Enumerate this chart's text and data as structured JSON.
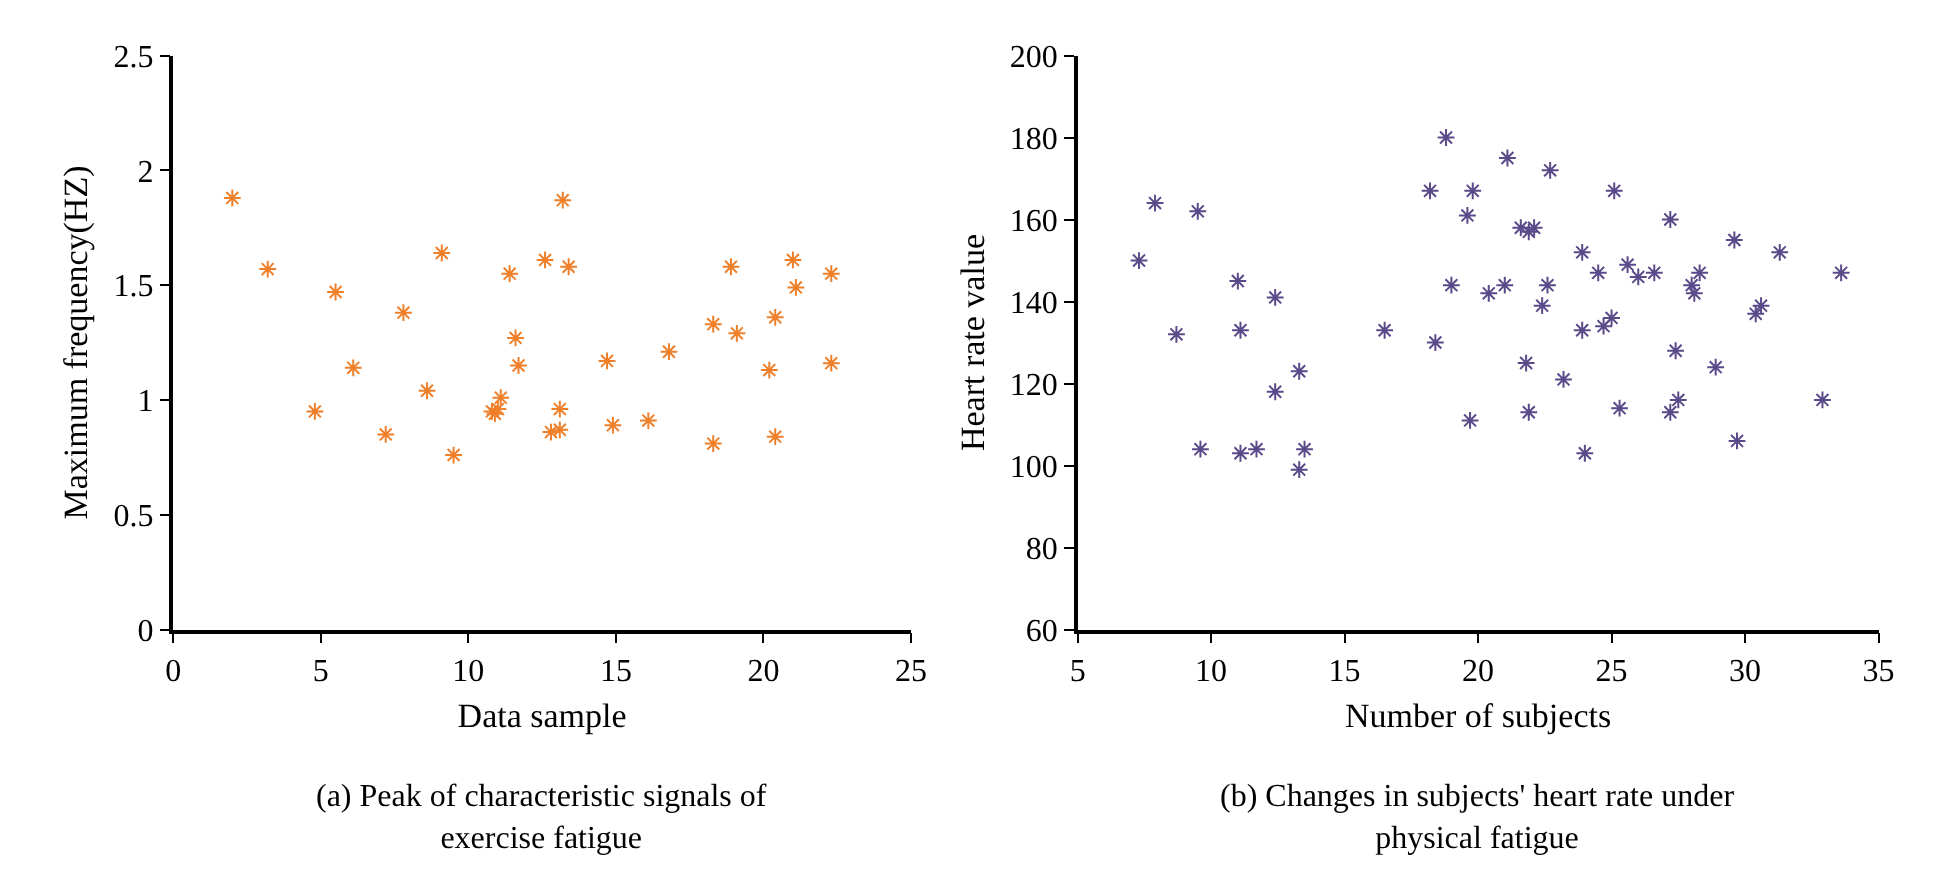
{
  "chart_data": [
    {
      "type": "scatter",
      "xlabel": "Data sample",
      "ylabel": "Maximum frequency(HZ)",
      "annotations": [
        "(a) Peak of characteristic signals of exercise fatigue"
      ],
      "marker": "cross",
      "xlim": [
        0,
        25
      ],
      "xticks": [
        0,
        5,
        10,
        15,
        20,
        25
      ],
      "ylim": [
        0,
        2.5
      ],
      "yticks": [
        0,
        0.5,
        1,
        1.5,
        2,
        2.5
      ],
      "series": [
        {
          "color": "#f07f2a",
          "x": [
            2.0,
            3.2,
            5.5,
            6.1,
            4.8,
            7.8,
            7.2,
            8.6,
            9.1,
            9.5,
            10.8,
            10.9,
            11.0,
            11.1,
            11.4,
            11.6,
            11.7,
            13.2,
            12.6,
            13.4,
            13.1,
            12.8,
            13.1,
            14.7,
            14.9,
            16.1,
            16.8,
            18.3,
            18.3,
            18.9,
            19.1,
            20.2,
            20.4,
            20.4,
            21.0,
            21.1,
            22.3,
            22.3
          ],
          "values": [
            1.88,
            1.57,
            1.47,
            1.14,
            0.95,
            1.38,
            0.85,
            1.04,
            1.64,
            0.76,
            0.95,
            0.94,
            0.96,
            1.01,
            1.55,
            1.27,
            1.15,
            1.87,
            1.61,
            1.58,
            0.96,
            0.86,
            0.87,
            1.17,
            0.89,
            0.91,
            1.21,
            1.33,
            0.81,
            1.58,
            1.29,
            1.13,
            1.36,
            0.84,
            1.61,
            1.49,
            1.55,
            1.16
          ]
        }
      ]
    },
    {
      "type": "scatter",
      "xlabel": "Number of subjects",
      "ylabel": "Heart rate value",
      "annotations": [
        "(b) Changes in subjects' heart rate under physical fatigue"
      ],
      "marker": "cross",
      "xlim": [
        5,
        35
      ],
      "xticks": [
        5,
        10,
        15,
        20,
        25,
        30,
        35
      ],
      "ylim": [
        60,
        200
      ],
      "yticks": [
        60,
        80,
        100,
        120,
        140,
        160,
        180,
        200
      ],
      "series": [
        {
          "color": "#5a4a8a",
          "x": [
            7.3,
            7.9,
            9.5,
            8.7,
            9.6,
            11.0,
            11.1,
            11.1,
            11.7,
            12.4,
            12.4,
            13.3,
            13.3,
            13.5,
            16.5,
            18.2,
            18.8,
            18.4,
            19.0,
            19.8,
            19.6,
            19.7,
            20.4,
            21.0,
            21.1,
            21.6,
            21.9,
            22.1,
            21.8,
            21.9,
            22.4,
            22.6,
            22.7,
            23.2,
            23.9,
            23.9,
            24.0,
            24.5,
            24.7,
            25.0,
            25.1,
            25.3,
            25.6,
            26.0,
            26.6,
            27.2,
            27.4,
            27.2,
            27.5,
            28.0,
            28.1,
            28.3,
            28.9,
            29.6,
            29.7,
            30.4,
            30.6,
            31.3,
            32.9,
            33.6
          ],
          "values": [
            150,
            164,
            162,
            132,
            104,
            145,
            133,
            103,
            104,
            141,
            118,
            123,
            99,
            104,
            133,
            167,
            180,
            130,
            144,
            167,
            161,
            111,
            142,
            144,
            175,
            158,
            157,
            158,
            125,
            113,
            139,
            144,
            172,
            121,
            152,
            133,
            103,
            147,
            134,
            136,
            167,
            114,
            149,
            146,
            147,
            160,
            128,
            113,
            116,
            144,
            142,
            147,
            124,
            155,
            106,
            137,
            139,
            152,
            116,
            147
          ]
        }
      ]
    }
  ]
}
